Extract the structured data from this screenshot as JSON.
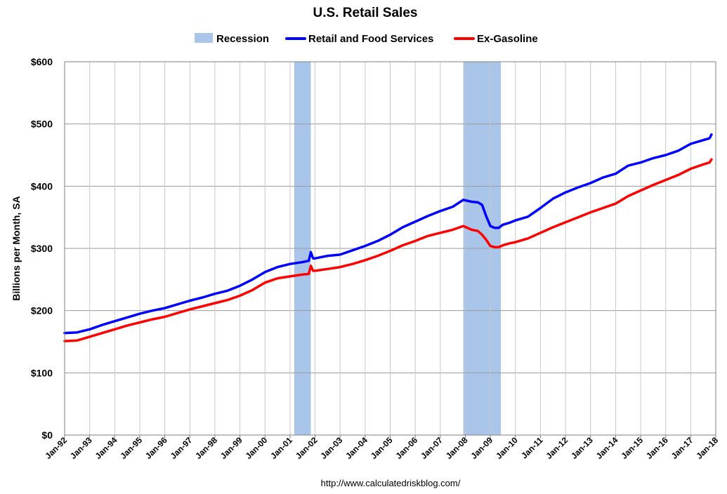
{
  "chart_data": {
    "type": "line",
    "title": "U.S. Retail Sales",
    "ylabel": "Billions per Month, SA",
    "xlabel": "",
    "source": "http://www.calculatedriskblog.com/",
    "ylim": [
      0,
      600
    ],
    "yticks": [
      "$0",
      "$100",
      "$200",
      "$300",
      "$400",
      "$500",
      "$600"
    ],
    "yticks_values": [
      0,
      100,
      200,
      300,
      400,
      500,
      600
    ],
    "xticks": [
      "Jan-92",
      "Jan-93",
      "Jan-94",
      "Jan-95",
      "Jan-96",
      "Jan-97",
      "Jan-98",
      "Jan-99",
      "Jan-00",
      "Jan-01",
      "Jan-02",
      "Jan-03",
      "Jan-04",
      "Jan-05",
      "Jan-06",
      "Jan-07",
      "Jan-08",
      "Jan-09",
      "Jan-10",
      "Jan-11",
      "Jan-12",
      "Jan-13",
      "Jan-14",
      "Jan-15",
      "Jan-16",
      "Jan-17",
      "Jan-18"
    ],
    "xlim": [
      1992.0,
      2018.0
    ],
    "grid": true,
    "legend": {
      "placement": "top",
      "items": [
        {
          "label": "Recession",
          "kind": "band",
          "color": "#a9c6ea"
        },
        {
          "label": "Retail and Food Services",
          "kind": "line",
          "color": "#0000ff"
        },
        {
          "label": "Ex-Gasoline",
          "kind": "line",
          "color": "#ff0000"
        }
      ]
    },
    "recessions": [
      {
        "start": 2001.17,
        "end": 2001.83
      },
      {
        "start": 2007.92,
        "end": 2009.42
      }
    ],
    "series": [
      {
        "name": "Retail and Food Services",
        "color": "#0000ff",
        "points": [
          [
            1992.0,
            164
          ],
          [
            1992.5,
            165
          ],
          [
            1993.0,
            170
          ],
          [
            1993.5,
            177
          ],
          [
            1994.0,
            183
          ],
          [
            1994.5,
            189
          ],
          [
            1995.0,
            195
          ],
          [
            1995.5,
            200
          ],
          [
            1996.0,
            204
          ],
          [
            1996.5,
            210
          ],
          [
            1997.0,
            216
          ],
          [
            1997.5,
            221
          ],
          [
            1998.0,
            227
          ],
          [
            1998.5,
            232
          ],
          [
            1999.0,
            240
          ],
          [
            1999.5,
            250
          ],
          [
            2000.0,
            262
          ],
          [
            2000.5,
            270
          ],
          [
            2001.0,
            275
          ],
          [
            2001.5,
            278
          ],
          [
            2001.75,
            280
          ],
          [
            2001.83,
            294
          ],
          [
            2001.92,
            284
          ],
          [
            2002.0,
            284
          ],
          [
            2002.5,
            288
          ],
          [
            2003.0,
            290
          ],
          [
            2003.5,
            297
          ],
          [
            2004.0,
            304
          ],
          [
            2004.5,
            312
          ],
          [
            2005.0,
            322
          ],
          [
            2005.5,
            334
          ],
          [
            2006.0,
            343
          ],
          [
            2006.5,
            352
          ],
          [
            2007.0,
            360
          ],
          [
            2007.5,
            367
          ],
          [
            2007.92,
            378
          ],
          [
            2008.25,
            375
          ],
          [
            2008.5,
            374
          ],
          [
            2008.67,
            370
          ],
          [
            2008.83,
            352
          ],
          [
            2009.0,
            336
          ],
          [
            2009.17,
            333
          ],
          [
            2009.33,
            333
          ],
          [
            2009.5,
            338
          ],
          [
            2009.75,
            341
          ],
          [
            2010.0,
            345
          ],
          [
            2010.5,
            351
          ],
          [
            2011.0,
            365
          ],
          [
            2011.5,
            380
          ],
          [
            2012.0,
            390
          ],
          [
            2012.5,
            398
          ],
          [
            2013.0,
            405
          ],
          [
            2013.5,
            414
          ],
          [
            2014.0,
            420
          ],
          [
            2014.5,
            433
          ],
          [
            2015.0,
            438
          ],
          [
            2015.5,
            445
          ],
          [
            2016.0,
            450
          ],
          [
            2016.5,
            457
          ],
          [
            2017.0,
            468
          ],
          [
            2017.5,
            474
          ],
          [
            2017.75,
            477
          ],
          [
            2017.83,
            483
          ]
        ]
      },
      {
        "name": "Ex-Gasoline",
        "color": "#ff0000",
        "points": [
          [
            1992.0,
            151
          ],
          [
            1992.5,
            152
          ],
          [
            1993.0,
            158
          ],
          [
            1993.5,
            164
          ],
          [
            1994.0,
            170
          ],
          [
            1994.5,
            176
          ],
          [
            1995.0,
            181
          ],
          [
            1995.5,
            186
          ],
          [
            1996.0,
            190
          ],
          [
            1996.5,
            196
          ],
          [
            1997.0,
            202
          ],
          [
            1997.5,
            207
          ],
          [
            1998.0,
            212
          ],
          [
            1998.5,
            217
          ],
          [
            1999.0,
            224
          ],
          [
            1999.5,
            233
          ],
          [
            2000.0,
            245
          ],
          [
            2000.5,
            252
          ],
          [
            2001.0,
            255
          ],
          [
            2001.5,
            258
          ],
          [
            2001.75,
            259
          ],
          [
            2001.83,
            272
          ],
          [
            2001.92,
            264
          ],
          [
            2002.0,
            264
          ],
          [
            2002.5,
            267
          ],
          [
            2003.0,
            270
          ],
          [
            2003.5,
            275
          ],
          [
            2004.0,
            281
          ],
          [
            2004.5,
            288
          ],
          [
            2005.0,
            296
          ],
          [
            2005.5,
            305
          ],
          [
            2006.0,
            312
          ],
          [
            2006.5,
            320
          ],
          [
            2007.0,
            325
          ],
          [
            2007.5,
            330
          ],
          [
            2007.92,
            336
          ],
          [
            2008.25,
            330
          ],
          [
            2008.5,
            328
          ],
          [
            2008.67,
            322
          ],
          [
            2008.83,
            314
          ],
          [
            2009.0,
            304
          ],
          [
            2009.17,
            302
          ],
          [
            2009.33,
            302
          ],
          [
            2009.5,
            305
          ],
          [
            2009.75,
            308
          ],
          [
            2010.0,
            310
          ],
          [
            2010.5,
            316
          ],
          [
            2011.0,
            325
          ],
          [
            2011.5,
            334
          ],
          [
            2012.0,
            342
          ],
          [
            2012.5,
            350
          ],
          [
            2013.0,
            358
          ],
          [
            2013.5,
            365
          ],
          [
            2014.0,
            372
          ],
          [
            2014.5,
            384
          ],
          [
            2015.0,
            393
          ],
          [
            2015.5,
            402
          ],
          [
            2016.0,
            410
          ],
          [
            2016.5,
            418
          ],
          [
            2017.0,
            428
          ],
          [
            2017.5,
            435
          ],
          [
            2017.75,
            438
          ],
          [
            2017.83,
            443
          ]
        ]
      }
    ]
  }
}
